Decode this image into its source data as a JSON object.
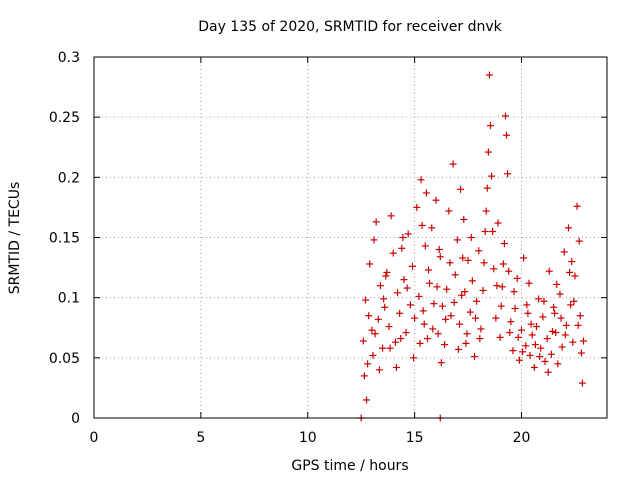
{
  "chart_data": {
    "type": "scatter",
    "title": "Day 135 of 2020, SRMTID for receiver dnvk",
    "xlabel": "GPS time / hours",
    "ylabel": "SRMTID / TECUs",
    "xlim": [
      0,
      24
    ],
    "ylim": [
      0,
      0.3
    ],
    "grid": true,
    "marker": "+",
    "color": "#cc0000",
    "x_ticks": [
      {
        "value": 0,
        "label": "0"
      },
      {
        "value": 5,
        "label": "5"
      },
      {
        "value": 10,
        "label": "10"
      },
      {
        "value": 15,
        "label": "15"
      },
      {
        "value": 20,
        "label": "20"
      }
    ],
    "y_ticks": [
      {
        "value": 0,
        "label": "0"
      },
      {
        "value": 0.05,
        "label": "0.05"
      },
      {
        "value": 0.1,
        "label": "0.1"
      },
      {
        "value": 0.15,
        "label": "0.15"
      },
      {
        "value": 0.2,
        "label": "0.2"
      },
      {
        "value": 0.25,
        "label": "0.25"
      },
      {
        "value": 0.3,
        "label": "0.3"
      }
    ],
    "series": [
      {
        "name": "SRMTID",
        "points": [
          [
            12.6,
            0.064
          ],
          [
            12.7,
            0.098
          ],
          [
            12.8,
            0.045
          ],
          [
            12.9,
            0.128
          ],
          [
            13.0,
            0.073
          ],
          [
            13.1,
            0.148
          ],
          [
            13.2,
            0.163
          ],
          [
            13.3,
            0.082
          ],
          [
            13.4,
            0.11
          ],
          [
            13.5,
            0.058
          ],
          [
            13.6,
            0.092
          ],
          [
            13.7,
            0.121
          ],
          [
            13.8,
            0.076
          ],
          [
            13.9,
            0.168
          ],
          [
            14.0,
            0.137
          ],
          [
            14.1,
            0.063
          ],
          [
            14.2,
            0.104
          ],
          [
            14.3,
            0.087
          ],
          [
            14.4,
            0.141
          ],
          [
            14.5,
            0.115
          ],
          [
            14.6,
            0.071
          ],
          [
            14.7,
            0.153
          ],
          [
            14.8,
            0.094
          ],
          [
            14.9,
            0.126
          ],
          [
            15.0,
            0.083
          ],
          [
            15.1,
            0.175
          ],
          [
            15.2,
            0.101
          ],
          [
            15.3,
            0.198
          ],
          [
            15.4,
            0.089
          ],
          [
            15.5,
            0.143
          ],
          [
            15.6,
            0.066
          ],
          [
            15.7,
            0.112
          ],
          [
            15.8,
            0.158
          ],
          [
            15.9,
            0.095
          ],
          [
            16.0,
            0.181
          ],
          [
            16.1,
            0.07
          ],
          [
            16.2,
            0.134
          ],
          [
            16.3,
            0.093
          ],
          [
            16.4,
            0.061
          ],
          [
            16.5,
            0.107
          ],
          [
            16.6,
            0.172
          ],
          [
            16.7,
            0.085
          ],
          [
            16.8,
            0.211
          ],
          [
            16.9,
            0.119
          ],
          [
            17.0,
            0.148
          ],
          [
            17.1,
            0.078
          ],
          [
            17.2,
            0.102
          ],
          [
            17.3,
            0.165
          ],
          [
            17.4,
            0.062
          ],
          [
            17.5,
            0.131
          ],
          [
            17.6,
            0.088
          ],
          [
            17.7,
            0.114
          ],
          [
            17.8,
            0.051
          ],
          [
            17.9,
            0.097
          ],
          [
            18.0,
            0.139
          ],
          [
            18.1,
            0.074
          ],
          [
            18.2,
            0.106
          ],
          [
            18.3,
            0.155
          ],
          [
            18.4,
            0.191
          ],
          [
            18.45,
            0.221
          ],
          [
            18.5,
            0.285
          ],
          [
            18.55,
            0.243
          ],
          [
            18.6,
            0.201
          ],
          [
            18.7,
            0.124
          ],
          [
            18.8,
            0.083
          ],
          [
            18.9,
            0.162
          ],
          [
            19.0,
            0.067
          ],
          [
            19.1,
            0.109
          ],
          [
            19.2,
            0.145
          ],
          [
            19.25,
            0.251
          ],
          [
            19.3,
            0.235
          ],
          [
            19.35,
            0.203
          ],
          [
            19.4,
            0.122
          ],
          [
            19.5,
            0.08
          ],
          [
            19.6,
            0.056
          ],
          [
            19.7,
            0.091
          ],
          [
            19.8,
            0.116
          ],
          [
            19.9,
            0.048
          ],
          [
            20.0,
            0.073
          ],
          [
            20.1,
            0.133
          ],
          [
            20.2,
            0.06
          ],
          [
            20.3,
            0.087
          ],
          [
            20.4,
            0.052
          ],
          [
            20.5,
            0.069
          ],
          [
            20.6,
            0.042
          ],
          [
            20.7,
            0.076
          ],
          [
            20.8,
            0.099
          ],
          [
            20.9,
            0.058
          ],
          [
            21.0,
            0.084
          ],
          [
            21.1,
            0.047
          ],
          [
            21.2,
            0.066
          ],
          [
            21.3,
            0.122
          ],
          [
            21.4,
            0.053
          ],
          [
            21.5,
            0.092
          ],
          [
            21.6,
            0.071
          ],
          [
            21.7,
            0.045
          ],
          [
            21.8,
            0.103
          ],
          [
            21.9,
            0.059
          ],
          [
            22.0,
            0.138
          ],
          [
            22.1,
            0.077
          ],
          [
            22.2,
            0.158
          ],
          [
            22.3,
            0.094
          ],
          [
            22.4,
            0.063
          ],
          [
            22.5,
            0.118
          ],
          [
            22.6,
            0.176
          ],
          [
            22.7,
            0.147
          ],
          [
            22.75,
            0.085
          ],
          [
            22.8,
            0.054
          ],
          [
            22.85,
            0.029
          ],
          [
            22.9,
            0.064
          ],
          [
            12.65,
            0.035
          ],
          [
            12.75,
            0.015
          ],
          [
            13.05,
            0.052
          ],
          [
            13.35,
            0.04
          ],
          [
            13.55,
            0.099
          ],
          [
            13.85,
            0.058
          ],
          [
            14.15,
            0.042
          ],
          [
            14.35,
            0.066
          ],
          [
            14.65,
            0.108
          ],
          [
            14.95,
            0.05
          ],
          [
            15.25,
            0.062
          ],
          [
            15.45,
            0.078
          ],
          [
            15.65,
            0.123
          ],
          [
            15.85,
            0.074
          ],
          [
            16.05,
            0.109
          ],
          [
            16.25,
            0.046
          ],
          [
            16.45,
            0.082
          ],
          [
            16.65,
            0.129
          ],
          [
            16.85,
            0.096
          ],
          [
            17.05,
            0.057
          ],
          [
            17.25,
            0.133
          ],
          [
            17.45,
            0.07
          ],
          [
            17.65,
            0.15
          ],
          [
            17.85,
            0.083
          ],
          [
            18.05,
            0.066
          ],
          [
            18.25,
            0.129
          ],
          [
            18.65,
            0.155
          ],
          [
            18.85,
            0.11
          ],
          [
            19.05,
            0.093
          ],
          [
            19.45,
            0.071
          ],
          [
            19.65,
            0.105
          ],
          [
            19.85,
            0.067
          ],
          [
            20.05,
            0.055
          ],
          [
            20.25,
            0.094
          ],
          [
            20.45,
            0.078
          ],
          [
            20.65,
            0.061
          ],
          [
            20.85,
            0.051
          ],
          [
            21.05,
            0.097
          ],
          [
            21.25,
            0.038
          ],
          [
            21.45,
            0.072
          ],
          [
            21.65,
            0.111
          ],
          [
            21.85,
            0.083
          ],
          [
            22.05,
            0.069
          ],
          [
            22.25,
            0.121
          ],
          [
            22.45,
            0.097
          ],
          [
            22.65,
            0.077
          ],
          [
            15.35,
            0.16
          ],
          [
            16.15,
            0.14
          ],
          [
            17.15,
            0.19
          ],
          [
            18.35,
            0.172
          ],
          [
            14.45,
            0.15
          ],
          [
            13.65,
            0.118
          ],
          [
            13.15,
            0.07
          ],
          [
            12.85,
            0.085
          ],
          [
            15.55,
            0.187
          ],
          [
            17.35,
            0.105
          ],
          [
            19.15,
            0.128
          ],
          [
            20.35,
            0.112
          ],
          [
            21.55,
            0.087
          ],
          [
            22.35,
            0.13
          ],
          [
            12.5,
            0.0
          ],
          [
            16.2,
            0.0
          ]
        ]
      }
    ]
  }
}
